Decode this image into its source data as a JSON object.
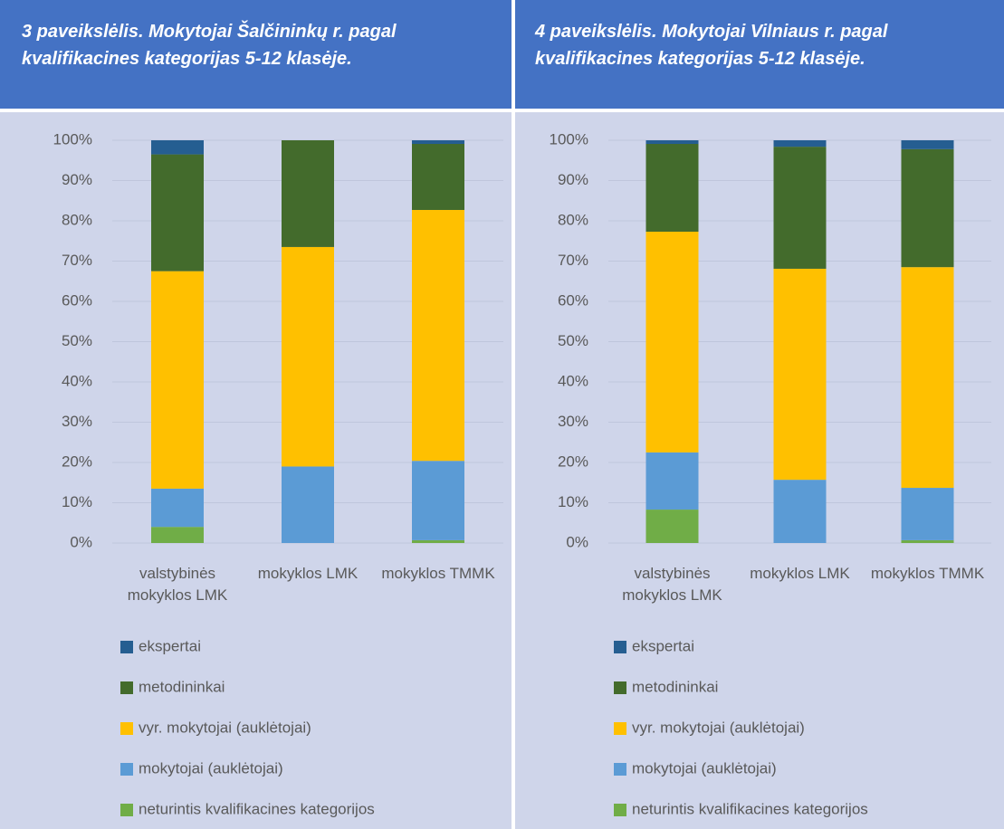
{
  "chart_data": [
    {
      "type": "bar",
      "stacked": true,
      "title": "3 paveikslėlis. Mokytojai Šalčininkų r. pagal kvalifikacines kategorijas 5-12 klasėje.",
      "categories": [
        "valstybinės mokyklos LMK",
        "mokyklos LMK",
        "mokyklos TMMK"
      ],
      "series": [
        {
          "name": "neturintis kvalifikacines kategorijos",
          "color": "#70ad47",
          "values": [
            4,
            0,
            0.7
          ]
        },
        {
          "name": "mokytojai (auklėtojai)",
          "color": "#5b9bd5",
          "values": [
            9.5,
            19,
            19.7
          ]
        },
        {
          "name": "vyr. mokytojai (auklėtojai)",
          "color": "#ffc000",
          "values": [
            54,
            54.5,
            62.3
          ]
        },
        {
          "name": "metodininkai",
          "color": "#436b2c",
          "values": [
            29,
            26.5,
            16.4
          ]
        },
        {
          "name": "ekspertai",
          "color": "#255e91",
          "values": [
            3.5,
            0,
            0.9
          ]
        }
      ],
      "ylim": [
        0,
        100
      ],
      "yticks": [
        {
          "value": 0,
          "label": "0%"
        },
        {
          "value": 10,
          "label": "10%"
        },
        {
          "value": 20,
          "label": "20%"
        },
        {
          "value": 30,
          "label": "30%"
        },
        {
          "value": 40,
          "label": "40%"
        },
        {
          "value": 50,
          "label": "50%"
        },
        {
          "value": 60,
          "label": "60%"
        },
        {
          "value": 70,
          "label": "70%"
        },
        {
          "value": 80,
          "label": "80%"
        },
        {
          "value": 90,
          "label": "90%"
        },
        {
          "value": 100,
          "label": "100%"
        }
      ],
      "grid": true,
      "legend": "bottom"
    },
    {
      "type": "bar",
      "stacked": true,
      "title": "4 paveikslėlis. Mokytojai Vilniaus r. pagal kvalifikacines kategorijas 5-12 klasėje.",
      "categories": [
        "valstybinės mokyklos LMK",
        "mokyklos LMK",
        "mokyklos TMMK"
      ],
      "series": [
        {
          "name": "neturintis kvalifikacines kategorijos",
          "color": "#70ad47",
          "values": [
            8.3,
            0,
            0.7
          ]
        },
        {
          "name": "mokytojai (auklėtojai)",
          "color": "#5b9bd5",
          "values": [
            14.2,
            15.7,
            13
          ]
        },
        {
          "name": "vyr. mokytojai (auklėtojai)",
          "color": "#ffc000",
          "values": [
            54.8,
            52.4,
            54.8
          ]
        },
        {
          "name": "metodininkai",
          "color": "#436b2c",
          "values": [
            21.8,
            30.3,
            29.3
          ]
        },
        {
          "name": "ekspertai",
          "color": "#255e91",
          "values": [
            0.9,
            1.6,
            2.2
          ]
        }
      ],
      "ylim": [
        0,
        100
      ],
      "yticks": [
        {
          "value": 0,
          "label": "0%"
        },
        {
          "value": 10,
          "label": "10%"
        },
        {
          "value": 20,
          "label": "20%"
        },
        {
          "value": 30,
          "label": "30%"
        },
        {
          "value": 40,
          "label": "40%"
        },
        {
          "value": 50,
          "label": "50%"
        },
        {
          "value": 60,
          "label": "60%"
        },
        {
          "value": 70,
          "label": "70%"
        },
        {
          "value": 80,
          "label": "80%"
        },
        {
          "value": 90,
          "label": "90%"
        },
        {
          "value": 100,
          "label": "100%"
        }
      ],
      "grid": true,
      "legend": "bottom"
    }
  ]
}
